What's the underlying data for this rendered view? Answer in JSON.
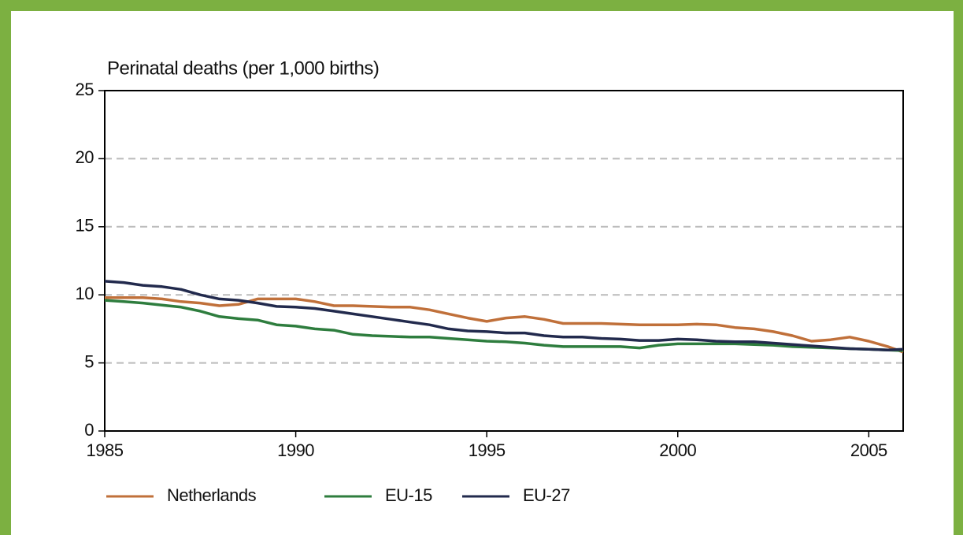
{
  "chart_data": {
    "type": "line",
    "y_axis_title": "Perinatal deaths (per 1,000 births)",
    "x": [
      1985,
      1985.5,
      1986,
      1986.5,
      1987,
      1987.5,
      1988,
      1988.5,
      1989,
      1989.5,
      1990,
      1990.5,
      1991,
      1991.5,
      1992,
      1992.5,
      1993,
      1993.5,
      1994,
      1994.5,
      1995,
      1995.5,
      1996,
      1996.5,
      1997,
      1997.5,
      1998,
      1998.5,
      1999,
      1999.5,
      2000,
      2000.5,
      2001,
      2001.5,
      2002,
      2002.5,
      2003,
      2003.5,
      2004,
      2004.5,
      2005,
      2005.5,
      2005.9
    ],
    "series": [
      {
        "name": "Netherlands",
        "color": "#c0703a",
        "values": [
          9.8,
          9.8,
          9.8,
          9.7,
          9.5,
          9.4,
          9.2,
          9.3,
          9.7,
          9.7,
          9.7,
          9.5,
          9.2,
          9.2,
          9.15,
          9.1,
          9.1,
          8.9,
          8.6,
          8.3,
          8.05,
          8.3,
          8.4,
          8.2,
          7.9,
          7.9,
          7.9,
          7.85,
          7.8,
          7.8,
          7.8,
          7.85,
          7.8,
          7.6,
          7.5,
          7.3,
          7.0,
          6.6,
          6.7,
          6.9,
          6.6,
          6.2,
          5.8
        ]
      },
      {
        "name": "EU-15",
        "color": "#2e7d3e",
        "values": [
          9.6,
          9.5,
          9.4,
          9.25,
          9.1,
          8.8,
          8.4,
          8.25,
          8.15,
          7.8,
          7.7,
          7.5,
          7.4,
          7.1,
          7.0,
          6.95,
          6.9,
          6.9,
          6.8,
          6.7,
          6.6,
          6.55,
          6.45,
          6.3,
          6.2,
          6.2,
          6.2,
          6.2,
          6.1,
          6.3,
          6.4,
          6.4,
          6.4,
          6.4,
          6.35,
          6.3,
          6.2,
          6.15,
          6.1,
          6.05,
          6.0,
          5.95,
          5.9
        ]
      },
      {
        "name": "EU-27",
        "color": "#222a4d",
        "values": [
          11.0,
          10.9,
          10.7,
          10.6,
          10.4,
          10.0,
          9.7,
          9.6,
          9.4,
          9.15,
          9.1,
          9.0,
          8.8,
          8.6,
          8.4,
          8.2,
          8.0,
          7.8,
          7.5,
          7.35,
          7.3,
          7.2,
          7.2,
          7.0,
          6.9,
          6.9,
          6.8,
          6.75,
          6.65,
          6.65,
          6.75,
          6.7,
          6.6,
          6.55,
          6.55,
          6.45,
          6.35,
          6.25,
          6.15,
          6.05,
          6.0,
          5.95,
          6.0
        ]
      }
    ],
    "xlim": [
      1985,
      2005.9
    ],
    "xticks": [
      1985,
      1990,
      1995,
      2000,
      2005
    ],
    "ylim": [
      0,
      25
    ],
    "yticks": [
      0,
      5,
      10,
      15,
      20,
      25
    ],
    "grid": true,
    "legend": "bottom"
  }
}
